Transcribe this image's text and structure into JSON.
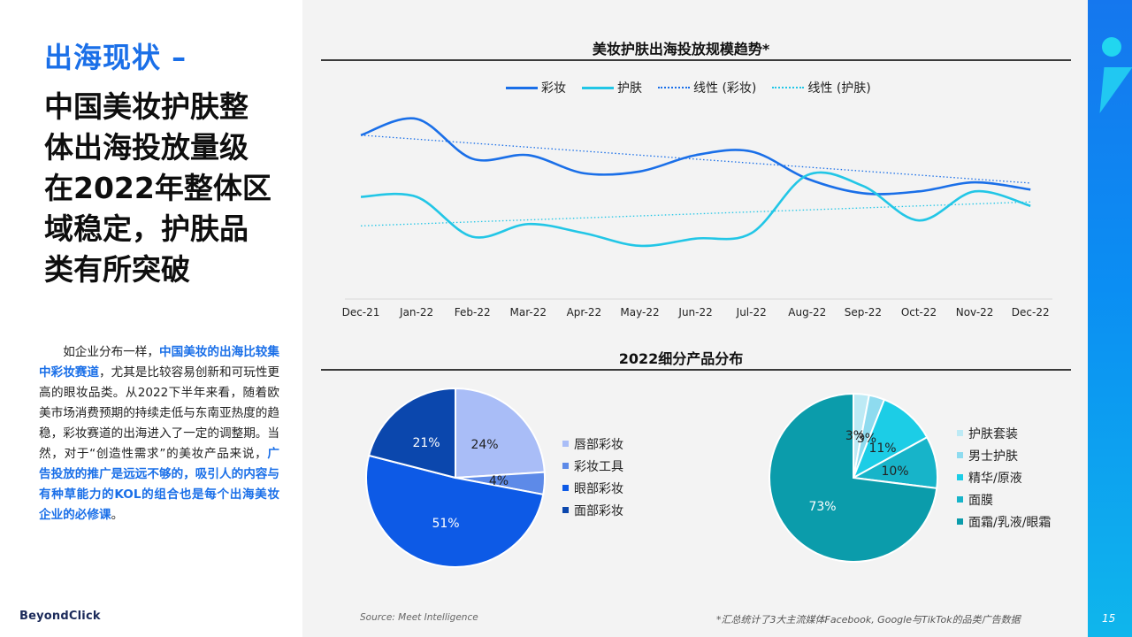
{
  "left": {
    "section_title": "出海现状 –",
    "headline": "中国美妆护肤整\n体出海投放量级\n在2022年整体区\n域稳定，护肤品\n类有所突破",
    "body": {
      "p1": "如企业分布一样，",
      "h1": "中国美妆的出海比较集中彩妆赛道",
      "p2": "，尤其是比较容易创新和可玩性更高的眼妆品类。从2022下半年来看，随着欧美市场消费预期的持续走低与东南亚热度的趋稳，彩妆赛道的出海进入了一定的调整期。当然，对于“创造性需求”的美妆产品来说，",
      "h2": "广告投放的推广是远远不够的，吸引人的内容与有种草能力的KOL的组合也是每个出海美妆企业的必修课",
      "p3": "。"
    },
    "logo": "BeyondClick"
  },
  "footer": {
    "source": "Source: Meet Intelligence",
    "note": "*汇总统计了3大主流媒体Facebook, Google与TikTok的品类广告数据",
    "page_number": "15"
  },
  "colors": {
    "accent": "#1a6fe8",
    "makeup": "#1a6fe8",
    "skincare": "#22c6e6"
  },
  "chart_data": [
    {
      "type": "line",
      "title": "美妆护肤出海投放规模趋势*",
      "x": [
        "Dec-21",
        "Jan-22",
        "Feb-22",
        "Mar-22",
        "Apr-22",
        "May-22",
        "Jun-22",
        "Jul-22",
        "Aug-22",
        "Sep-22",
        "Oct-22",
        "Nov-22",
        "Dec-22"
      ],
      "ylim": [
        0,
        100
      ],
      "series": [
        {
          "name": "彩妆",
          "values": [
            84,
            93,
            71,
            73,
            63,
            64,
            73,
            75,
            60,
            52,
            53,
            58,
            54
          ],
          "color": "#1a6fe8",
          "style": "solid"
        },
        {
          "name": "护肤",
          "values": [
            50,
            50,
            28,
            35,
            30,
            23,
            27,
            30,
            62,
            56,
            37,
            53,
            45
          ],
          "color": "#22c6e6",
          "style": "solid"
        },
        {
          "name": "线性 (彩妆)",
          "values": [
            84,
            81.8,
            79.6,
            77.4,
            75.2,
            73,
            70.8,
            68.6,
            66.4,
            64.2,
            62,
            59.8,
            57.6
          ],
          "color": "#1a6fe8",
          "style": "dotted"
        },
        {
          "name": "线性 (护肤)",
          "values": [
            34,
            35.1,
            36.2,
            37.3,
            38.4,
            39.5,
            40.6,
            41.7,
            42.8,
            43.9,
            45,
            46.1,
            47.2
          ],
          "color": "#22c6e6",
          "style": "dotted"
        }
      ],
      "legend_position": "top-center",
      "grid": false
    },
    {
      "type": "pie",
      "title": "2022细分产品分布",
      "categories": [
        "唇部彩妆",
        "彩妆工具",
        "眼部彩妆",
        "面部彩妆"
      ],
      "values": [
        24,
        4,
        51,
        21
      ],
      "labels": [
        "24%",
        "4%",
        "51%",
        "21%"
      ],
      "colors": [
        "#a9bdf7",
        "#5d8ae8",
        "#0d5ae6",
        "#0b47ad"
      ],
      "legend_position": "right"
    },
    {
      "type": "pie",
      "title": "2022细分产品分布",
      "categories": [
        "护肤套装",
        "男士护肤",
        "精华/原液",
        "面膜",
        "面霜/乳液/眼霜"
      ],
      "values": [
        3,
        3,
        11,
        10,
        73
      ],
      "labels": [
        "3%",
        "3%",
        "11%",
        "10%",
        "73%"
      ],
      "colors": [
        "#bdeaf5",
        "#8edbef",
        "#1ccde6",
        "#17b4c9",
        "#0b9cab"
      ],
      "legend_position": "right"
    }
  ]
}
